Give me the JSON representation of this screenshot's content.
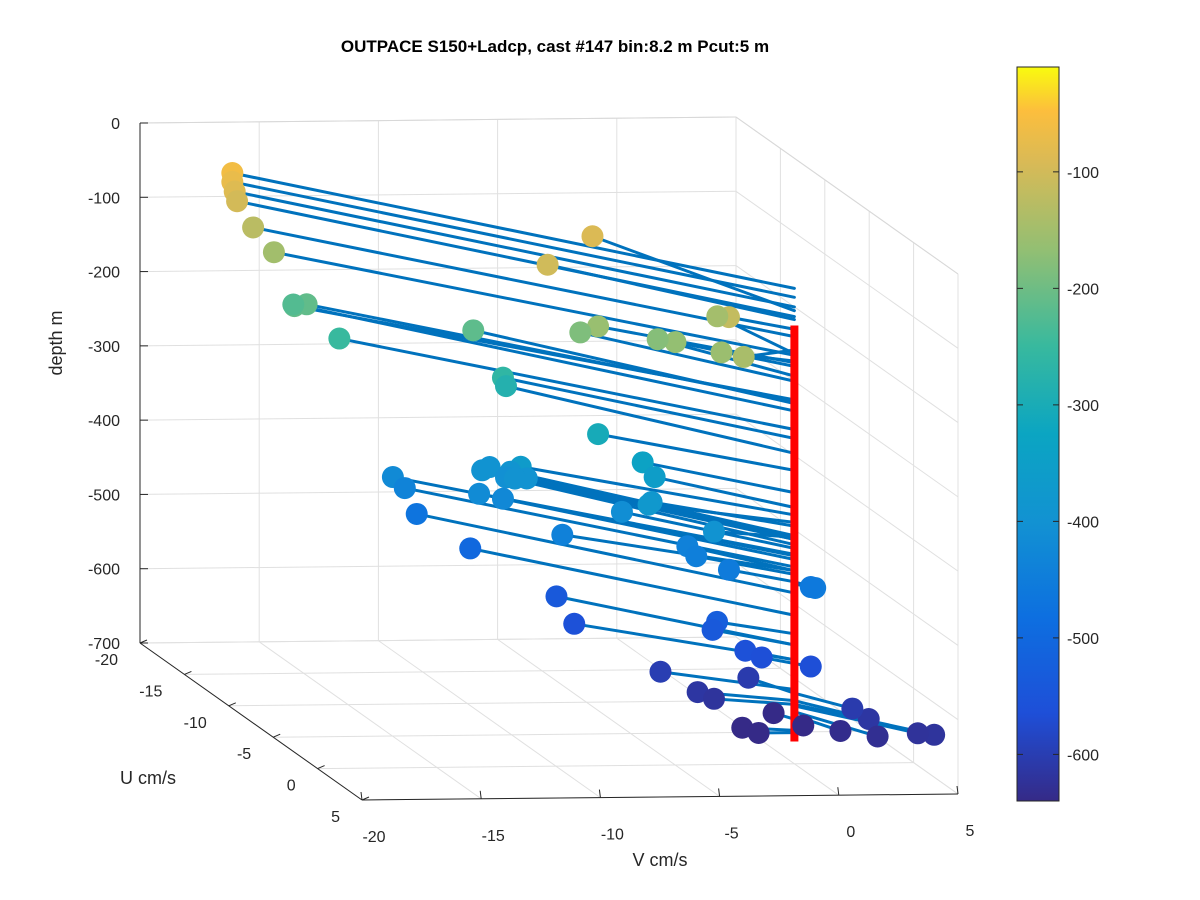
{
  "chart_data": {
    "type": "scatter",
    "title": "OUTPACE S150+Ladcp, cast #147 bin:8.2 m  Pcut:5 m",
    "xlabel": "V cm/s",
    "ylabel": "U cm/s",
    "zlabel": "depth m",
    "xlim": [
      -20,
      5
    ],
    "ylim": [
      -20,
      5
    ],
    "zlim": [
      -700,
      0
    ],
    "x_ticks": [
      -20,
      -15,
      -10,
      -5,
      0,
      5
    ],
    "y_ticks": [
      -20,
      -15,
      -10,
      -5,
      0,
      5
    ],
    "z_ticks": [
      0,
      -100,
      -200,
      -300,
      -400,
      -500,
      -600,
      -700
    ],
    "grid": true,
    "colormap": "parula",
    "colorbar": {
      "range": [
        -640,
        -10
      ],
      "ticks": [
        -100,
        -200,
        -300,
        -400,
        -500,
        -600
      ],
      "placement": "right"
    },
    "profile_line": {
      "color": "#ff0000",
      "x": 0,
      "y": 0,
      "z_range": [
        -670,
        -110
      ]
    },
    "stick_color": "#0072bd",
    "series": [
      {
        "points": [
          {
            "v": -16.5,
            "u": -19.0,
            "depth": -60
          },
          {
            "v": -16.5,
            "u": -19.0,
            "depth": -72
          },
          {
            "v": -16.4,
            "u": -19.0,
            "depth": -85
          },
          {
            "v": -16.3,
            "u": -19.0,
            "depth": -98
          },
          {
            "v": -16.0,
            "u": -18.0,
            "depth": -125
          },
          {
            "v": -15.5,
            "u": -17.0,
            "depth": -150
          },
          {
            "v": -7.0,
            "u": -9.0,
            "depth": -102
          },
          {
            "v": -4.0,
            "u": -12.0,
            "depth": -90
          },
          {
            "v": -2.0,
            "u": -2.0,
            "depth": -115
          },
          {
            "v": -1.0,
            "u": -6.0,
            "depth": -148
          },
          {
            "v": -2.5,
            "u": 1.0,
            "depth": -143
          },
          {
            "v": -2.5,
            "u": -1.5,
            "depth": -158
          },
          {
            "v": -6.0,
            "u": -6.0,
            "depth": -160
          },
          {
            "v": -3.5,
            "u": -4.0,
            "depth": -165
          },
          {
            "v": -3.5,
            "u": -6.0,
            "depth": -178
          },
          {
            "v": -6.0,
            "u": -8.0,
            "depth": -185
          },
          {
            "v": -15.2,
            "u": -15.5,
            "depth": -210
          },
          {
            "v": -14.5,
            "u": -16.0,
            "depth": -212
          },
          {
            "v": -14.5,
            "u": -17.5,
            "depth": -225
          },
          {
            "v": -13.5,
            "u": -15.0,
            "depth": -250
          },
          {
            "v": -9.0,
            "u": -12.0,
            "depth": -215
          },
          {
            "v": -8.5,
            "u": -10.0,
            "depth": -262
          },
          {
            "v": -8.0,
            "u": -11.0,
            "depth": -282
          },
          {
            "v": -6.0,
            "u": -6.0,
            "depth": -305
          },
          {
            "v": -4.5,
            "u": -5.0,
            "depth": -335
          },
          {
            "v": -4.0,
            "u": -5.0,
            "depth": -355
          },
          {
            "v": -4.5,
            "u": -4.0,
            "depth": -380
          },
          {
            "v": -5.0,
            "u": -3.0,
            "depth": -375
          },
          {
            "v": -3.0,
            "u": -1.0,
            "depth": -395
          },
          {
            "v": -8.5,
            "u": -8.0,
            "depth": -365
          },
          {
            "v": -9.0,
            "u": -11.0,
            "depth": -395
          },
          {
            "v": -8.5,
            "u": -11.5,
            "depth": -395
          },
          {
            "v": -8.0,
            "u": -10.5,
            "depth": -393
          },
          {
            "v": -8.0,
            "u": -11.0,
            "depth": -405
          },
          {
            "v": -7.5,
            "u": -10.0,
            "depth": -398
          },
          {
            "v": -5.0,
            "u": -6.0,
            "depth": -410
          },
          {
            "v": -8.0,
            "u": -10.0,
            "depth": -398
          },
          {
            "v": -12.0,
            "u": -13.0,
            "depth": -420
          },
          {
            "v": -11.5,
            "u": -13.0,
            "depth": -435
          },
          {
            "v": -9.5,
            "u": -10.0,
            "depth": -418
          },
          {
            "v": -8.5,
            "u": -10.0,
            "depth": -425
          },
          {
            "v": -3.0,
            "u": -4.0,
            "depth": -440
          },
          {
            "v": -3.0,
            "u": -3.0,
            "depth": -445
          },
          {
            "v": -2.0,
            "u": -2.0,
            "depth": -455
          },
          {
            "v": 0.5,
            "u": 1.0,
            "depth": -455
          },
          {
            "v": 0.5,
            "u": 0.5,
            "depth": -458
          },
          {
            "v": -7.5,
            "u": -6.0,
            "depth": -440
          },
          {
            "v": -11.0,
            "u": -13.0,
            "depth": -470
          },
          {
            "v": -9.5,
            "u": -11.0,
            "depth": -500
          },
          {
            "v": -7.0,
            "u": -8.0,
            "depth": -540
          },
          {
            "v": -7.0,
            "u": -6.0,
            "depth": -560
          },
          {
            "v": -2.5,
            "u": -2.0,
            "depth": -525
          },
          {
            "v": -2.5,
            "u": -2.5,
            "depth": -540
          },
          {
            "v": -1.5,
            "u": -1.5,
            "depth": -560
          },
          {
            "v": -1.0,
            "u": -1.0,
            "depth": -565
          },
          {
            "v": 0.5,
            "u": 0.5,
            "depth": -565
          },
          {
            "v": -4.5,
            "u": -3.0,
            "depth": -600
          },
          {
            "v": -3.5,
            "u": -1.5,
            "depth": -615
          },
          {
            "v": -3.0,
            "u": -1.0,
            "depth": -620
          },
          {
            "v": 2.0,
            "u": 3.0,
            "depth": -615
          },
          {
            "v": 1.5,
            "u": 2.5,
            "depth": -605
          },
          {
            "v": 2.0,
            "u": 4.0,
            "depth": -630
          },
          {
            "v": 4.0,
            "u": 5.0,
            "depth": -620
          },
          {
            "v": 3.5,
            "u": 4.5,
            "depth": -622
          },
          {
            "v": 1.0,
            "u": 2.5,
            "depth": -635
          },
          {
            "v": -1.0,
            "u": -2.5,
            "depth": -605
          },
          {
            "v": 0.0,
            "u": 1.0,
            "depth": -640
          },
          {
            "v": -2.0,
            "u": -0.5,
            "depth": -655
          },
          {
            "v": -1.5,
            "u": 0.0,
            "depth": -658
          },
          {
            "v": -0.5,
            "u": -1.0,
            "depth": -640
          }
        ]
      }
    ]
  }
}
